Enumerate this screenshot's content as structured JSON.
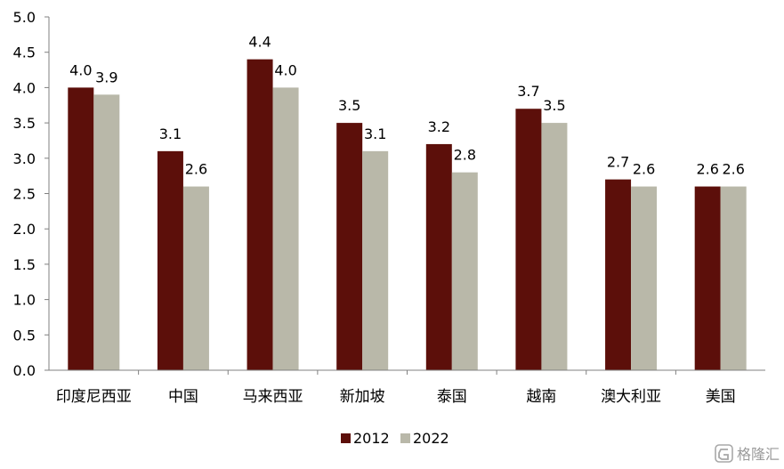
{
  "chart_data": {
    "type": "bar",
    "categories": [
      "印度尼西亚",
      "中国",
      "马来西亚",
      "新加坡",
      "泰国",
      "越南",
      "澳大利亚",
      "美国"
    ],
    "series": [
      {
        "name": "2012",
        "color": "#5c0f0a",
        "values": [
          4.0,
          3.1,
          4.4,
          3.5,
          3.2,
          3.7,
          2.7,
          2.6
        ]
      },
      {
        "name": "2022",
        "color": "#b9b8a9",
        "values": [
          3.9,
          2.6,
          4.0,
          3.1,
          2.8,
          3.5,
          2.6,
          2.6
        ]
      }
    ],
    "ylim": [
      0,
      5.0
    ],
    "yticks": [
      "0.0",
      "0.5",
      "1.0",
      "1.5",
      "2.0",
      "2.5",
      "3.0",
      "3.5",
      "4.0",
      "4.5",
      "5.0"
    ],
    "title": "",
    "xlabel": "",
    "ylabel": "",
    "grid": false,
    "legend_position": "bottom-center"
  },
  "watermark": {
    "icon": "gezhi-logo-icon",
    "text": "格隆汇"
  }
}
